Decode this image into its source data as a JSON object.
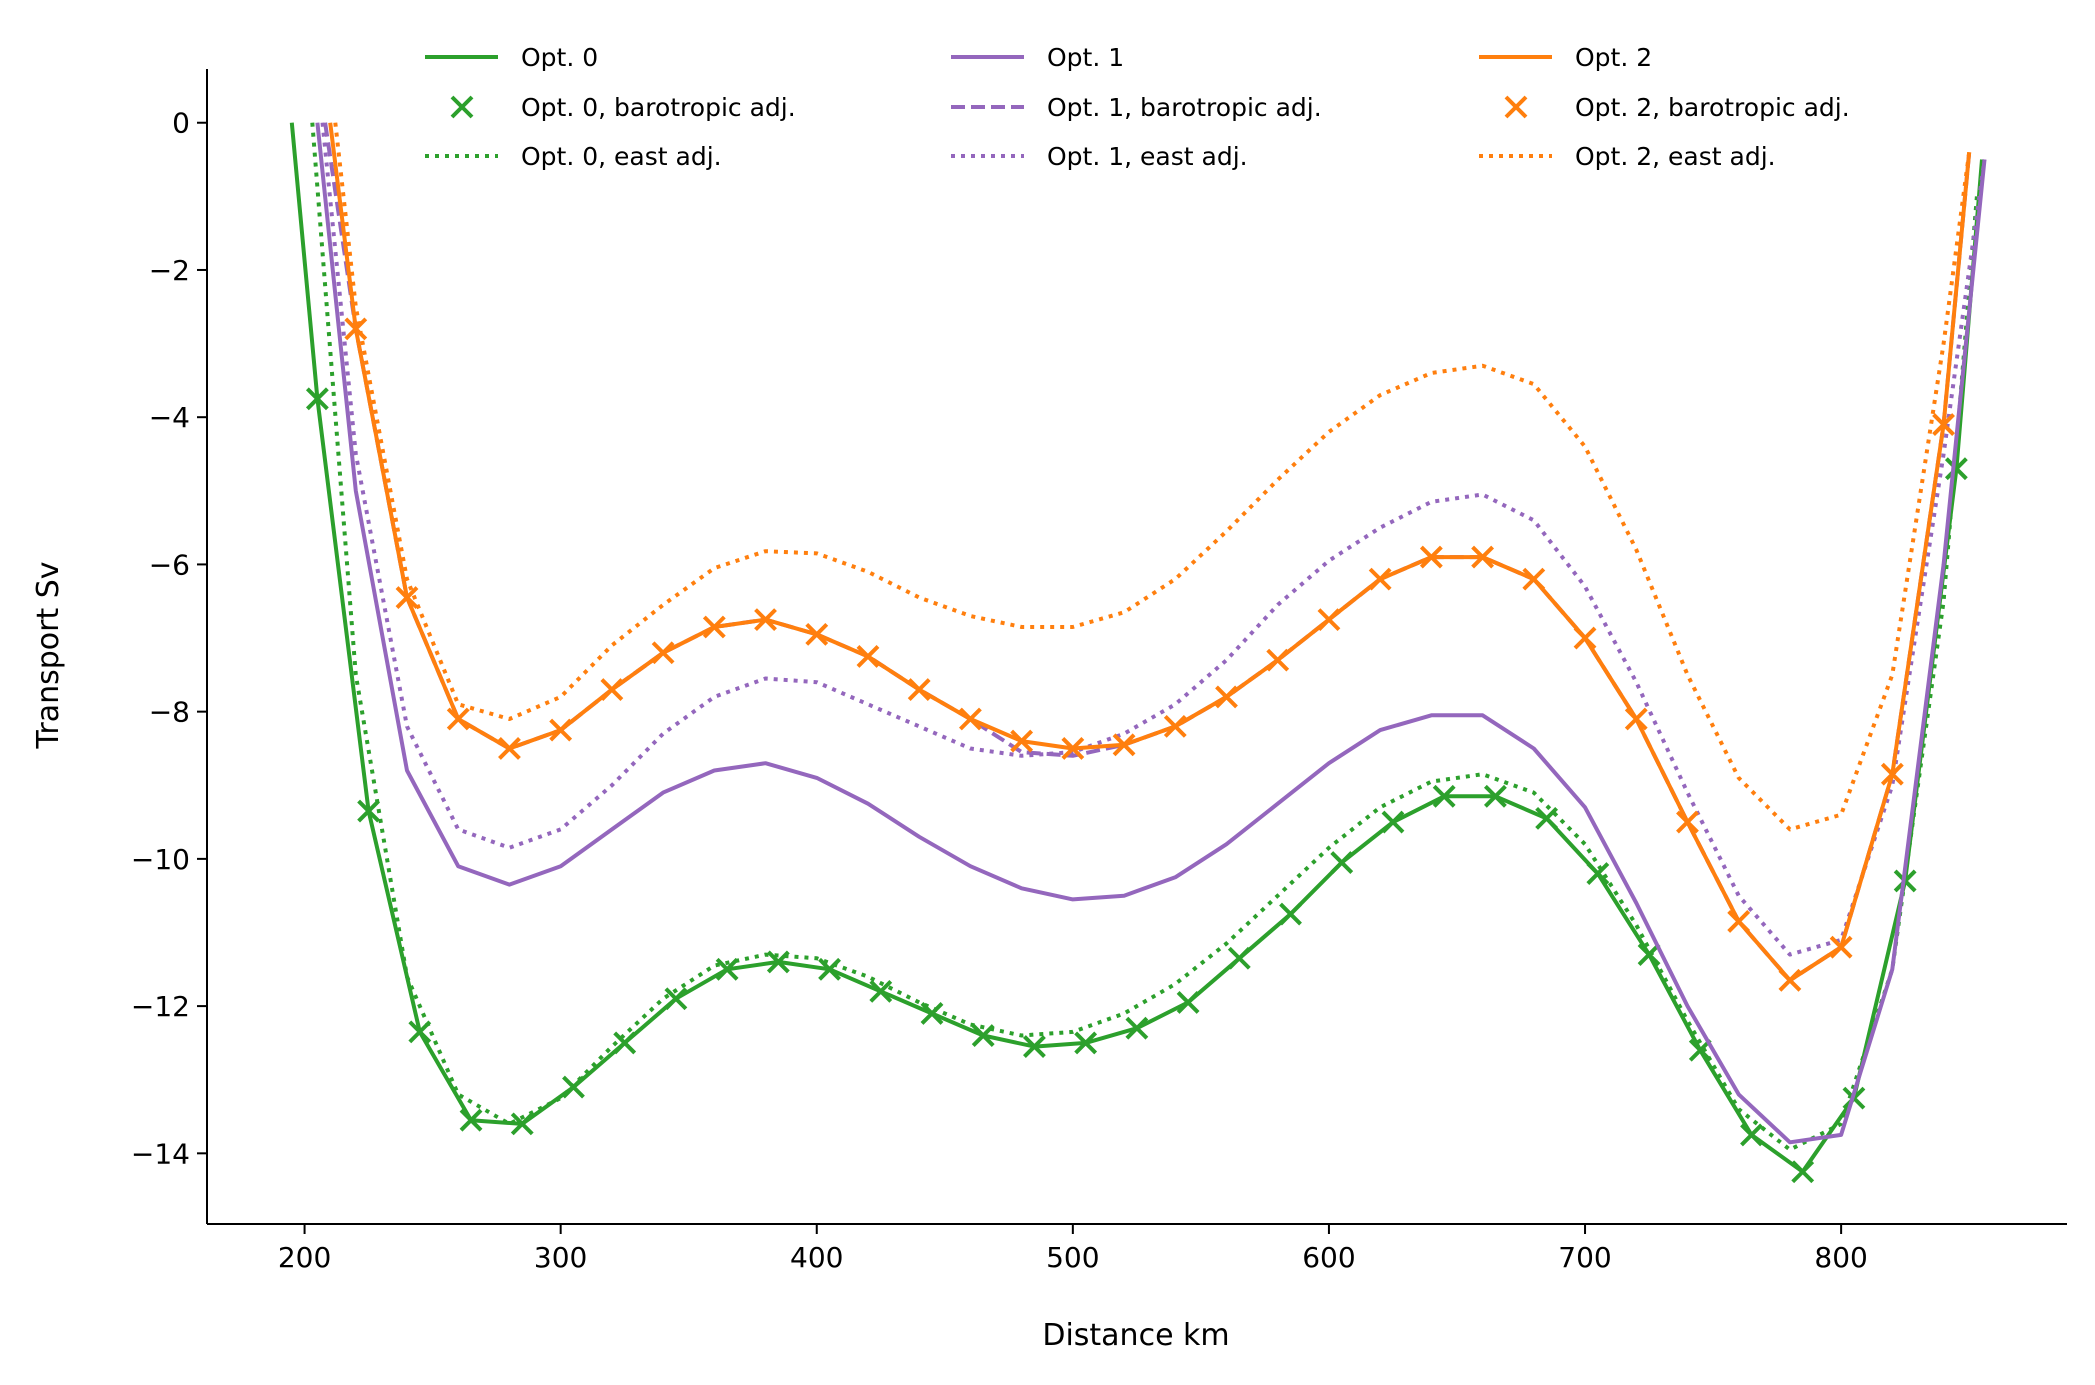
{
  "chart_data": {
    "type": "line",
    "xlabel": "Distance km",
    "ylabel": "Transport Sv",
    "xlim": [
      161.9,
      888.2
    ],
    "ylim": [
      -14.96,
      0.73
    ],
    "xticks": [
      200,
      300,
      400,
      500,
      600,
      700,
      800
    ],
    "yticks": [
      0,
      {
        "value": -2,
        "label": "−2"
      },
      {
        "value": -4,
        "label": "−4"
      },
      {
        "value": -6,
        "label": "−6"
      },
      {
        "value": -8,
        "label": "−8"
      },
      {
        "value": -10,
        "label": "−10"
      },
      {
        "value": -12,
        "label": "−12"
      },
      {
        "value": -14,
        "label": "−14"
      }
    ],
    "legend": "upper center",
    "legend_columns": 3,
    "series": [
      {
        "name": "Opt. 0",
        "color": "#2ca02c",
        "style": "solid",
        "x": [
          195,
          205,
          225,
          245,
          265,
          285,
          305,
          325,
          345,
          365,
          385,
          405,
          425,
          445,
          465,
          485,
          505,
          525,
          545,
          565,
          585,
          605,
          625,
          645,
          665,
          685,
          705,
          725,
          745,
          765,
          785,
          805,
          825,
          845,
          855
        ],
        "values": [
          0,
          -3.75,
          -9.35,
          -12.35,
          -13.55,
          -13.6,
          -13.1,
          -12.5,
          -11.9,
          -11.5,
          -11.4,
          -11.5,
          -11.8,
          -12.1,
          -12.4,
          -12.55,
          -12.5,
          -12.3,
          -11.95,
          -11.35,
          -10.75,
          -10.05,
          -9.5,
          -9.15,
          -9.15,
          -9.45,
          -10.2,
          -11.3,
          -12.6,
          -13.75,
          -14.25,
          -13.25,
          -10.3,
          -4.7,
          -0.5
        ]
      },
      {
        "name": "Opt. 0, barotropic adj.",
        "color": "#2ca02c",
        "style": "marker",
        "x": [
          205,
          225,
          245,
          265,
          285,
          305,
          325,
          345,
          365,
          385,
          405,
          425,
          445,
          465,
          485,
          505,
          525,
          545,
          565,
          585,
          605,
          625,
          645,
          665,
          685,
          705,
          725,
          745,
          765,
          785,
          805,
          825,
          845
        ],
        "values": [
          -3.75,
          -9.35,
          -12.35,
          -13.55,
          -13.6,
          -13.1,
          -12.5,
          -11.9,
          -11.5,
          -11.4,
          -11.5,
          -11.8,
          -12.1,
          -12.4,
          -12.55,
          -12.5,
          -12.3,
          -11.95,
          -11.35,
          -10.75,
          -10.05,
          -9.5,
          -9.15,
          -9.15,
          -9.45,
          -10.2,
          -11.3,
          -12.6,
          -13.75,
          -14.25,
          -13.25,
          -10.3,
          -4.7
        ]
      },
      {
        "name": "Opt. 0, east adj.",
        "color": "#2ca02c",
        "style": "dotted",
        "x": [
          203,
          220,
          240,
          260,
          280,
          300,
          320,
          340,
          360,
          380,
          400,
          420,
          440,
          460,
          480,
          500,
          520,
          540,
          560,
          580,
          600,
          620,
          640,
          660,
          680,
          700,
          720,
          740,
          760,
          780,
          800,
          820,
          840,
          853
        ],
        "values": [
          0,
          -7.5,
          -11.6,
          -13.2,
          -13.6,
          -13.25,
          -12.55,
          -11.9,
          -11.45,
          -11.3,
          -11.35,
          -11.6,
          -11.95,
          -12.25,
          -12.4,
          -12.35,
          -12.1,
          -11.7,
          -11.15,
          -10.5,
          -9.85,
          -9.3,
          -8.95,
          -8.85,
          -9.1,
          -9.8,
          -10.9,
          -12.2,
          -13.4,
          -13.95,
          -13.6,
          -11.5,
          -6.5,
          -1
        ]
      },
      {
        "name": "Opt. 1",
        "color": "#9467bd",
        "style": "solid",
        "x": [
          205,
          220,
          240,
          260,
          280,
          300,
          320,
          340,
          360,
          380,
          400,
          420,
          440,
          460,
          480,
          500,
          520,
          540,
          560,
          580,
          600,
          620,
          640,
          660,
          680,
          700,
          720,
          740,
          760,
          780,
          800,
          820,
          840,
          856
        ],
        "values": [
          0,
          -5,
          -8.8,
          -10.1,
          -10.35,
          -10.1,
          -9.6,
          -9.1,
          -8.8,
          -8.7,
          -8.9,
          -9.25,
          -9.7,
          -10.1,
          -10.4,
          -10.55,
          -10.5,
          -10.25,
          -9.8,
          -9.25,
          -8.7,
          -8.25,
          -8.05,
          -8.05,
          -8.5,
          -9.3,
          -10.6,
          -12,
          -13.2,
          -13.85,
          -13.75,
          -11.5,
          -6,
          -0.5
        ]
      },
      {
        "name": "Opt. 1, barotropic adj.",
        "color": "#9467bd",
        "style": "dashed",
        "x": [
          208,
          220,
          240,
          260,
          280,
          300,
          320,
          340,
          360,
          380,
          400,
          420,
          440,
          460,
          480,
          500,
          520,
          540,
          560,
          580,
          600,
          620,
          640,
          660,
          680,
          700,
          720,
          740,
          760,
          780,
          800,
          820,
          840,
          850
        ],
        "values": [
          0,
          -2.8,
          -6.45,
          -8.1,
          -8.5,
          -8.25,
          -7.7,
          -7.2,
          -6.85,
          -6.75,
          -6.95,
          -7.25,
          -7.7,
          -8.1,
          -8.55,
          -8.6,
          -8.45,
          -8.2,
          -7.8,
          -7.3,
          -6.75,
          -6.2,
          -5.9,
          -5.9,
          -6.2,
          -7,
          -8.1,
          -9.5,
          -10.85,
          -11.65,
          -11.2,
          -8.85,
          -4.1,
          -0.4
        ]
      },
      {
        "name": "Opt. 1, east adj.",
        "color": "#9467bd",
        "style": "dotted",
        "x": [
          207,
          220,
          240,
          260,
          280,
          300,
          320,
          340,
          360,
          380,
          400,
          420,
          440,
          460,
          480,
          500,
          520,
          540,
          560,
          580,
          600,
          620,
          640,
          660,
          680,
          700,
          720,
          740,
          760,
          780,
          800,
          820,
          840,
          856
        ],
        "values": [
          0,
          -4.5,
          -8.2,
          -9.6,
          -9.85,
          -9.6,
          -9,
          -8.3,
          -7.8,
          -7.55,
          -7.6,
          -7.9,
          -8.2,
          -8.5,
          -8.6,
          -8.55,
          -8.3,
          -7.9,
          -7.3,
          -6.55,
          -5.95,
          -5.5,
          -5.15,
          -5.05,
          -5.4,
          -6.3,
          -7.6,
          -9.1,
          -10.5,
          -11.3,
          -11.1,
          -9,
          -4.5,
          -0.5
        ]
      },
      {
        "name": "Opt. 2",
        "color": "#ff7f0e",
        "style": "solid",
        "x": [
          210,
          220,
          240,
          260,
          280,
          300,
          320,
          340,
          360,
          380,
          400,
          420,
          440,
          460,
          480,
          500,
          520,
          540,
          560,
          580,
          600,
          620,
          640,
          660,
          680,
          700,
          720,
          740,
          760,
          780,
          800,
          820,
          840,
          850
        ],
        "values": [
          0,
          -2.8,
          -6.45,
          -8.1,
          -8.5,
          -8.25,
          -7.7,
          -7.2,
          -6.85,
          -6.75,
          -6.95,
          -7.25,
          -7.7,
          -8.1,
          -8.4,
          -8.5,
          -8.45,
          -8.2,
          -7.8,
          -7.3,
          -6.75,
          -6.2,
          -5.9,
          -5.9,
          -6.2,
          -7,
          -8.1,
          -9.5,
          -10.85,
          -11.65,
          -11.2,
          -8.85,
          -4.1,
          -0.4
        ]
      },
      {
        "name": "Opt. 2, barotropic adj.",
        "color": "#ff7f0e",
        "style": "marker",
        "x": [
          220,
          240,
          260,
          280,
          300,
          320,
          340,
          360,
          380,
          400,
          420,
          440,
          460,
          480,
          500,
          520,
          540,
          560,
          580,
          600,
          620,
          640,
          660,
          680,
          700,
          720,
          740,
          760,
          780,
          800,
          820,
          840
        ],
        "values": [
          -2.8,
          -6.45,
          -8.1,
          -8.5,
          -8.25,
          -7.7,
          -7.2,
          -6.85,
          -6.75,
          -6.95,
          -7.25,
          -7.7,
          -8.1,
          -8.4,
          -8.5,
          -8.45,
          -8.2,
          -7.8,
          -7.3,
          -6.75,
          -6.2,
          -5.9,
          -5.9,
          -6.2,
          -7,
          -8.1,
          -9.5,
          -10.85,
          -11.65,
          -11.2,
          -8.85,
          -4.1
        ]
      },
      {
        "name": "Opt. 2, east adj.",
        "color": "#ff7f0e",
        "style": "dotted",
        "x": [
          212,
          220,
          240,
          260,
          280,
          300,
          320,
          340,
          360,
          380,
          400,
          420,
          440,
          460,
          480,
          500,
          520,
          540,
          560,
          580,
          600,
          620,
          640,
          660,
          680,
          700,
          720,
          740,
          760,
          780,
          800,
          820,
          840,
          850
        ],
        "values": [
          0,
          -2.5,
          -6.2,
          -7.9,
          -8.1,
          -7.8,
          -7.1,
          -6.55,
          -6.05,
          -5.82,
          -5.85,
          -6.1,
          -6.45,
          -6.7,
          -6.85,
          -6.85,
          -6.65,
          -6.2,
          -5.55,
          -4.85,
          -4.2,
          -3.7,
          -3.4,
          -3.3,
          -3.55,
          -4.4,
          -5.8,
          -7.5,
          -8.9,
          -9.6,
          -9.4,
          -7.5,
          -3,
          -0.4
        ]
      }
    ]
  }
}
